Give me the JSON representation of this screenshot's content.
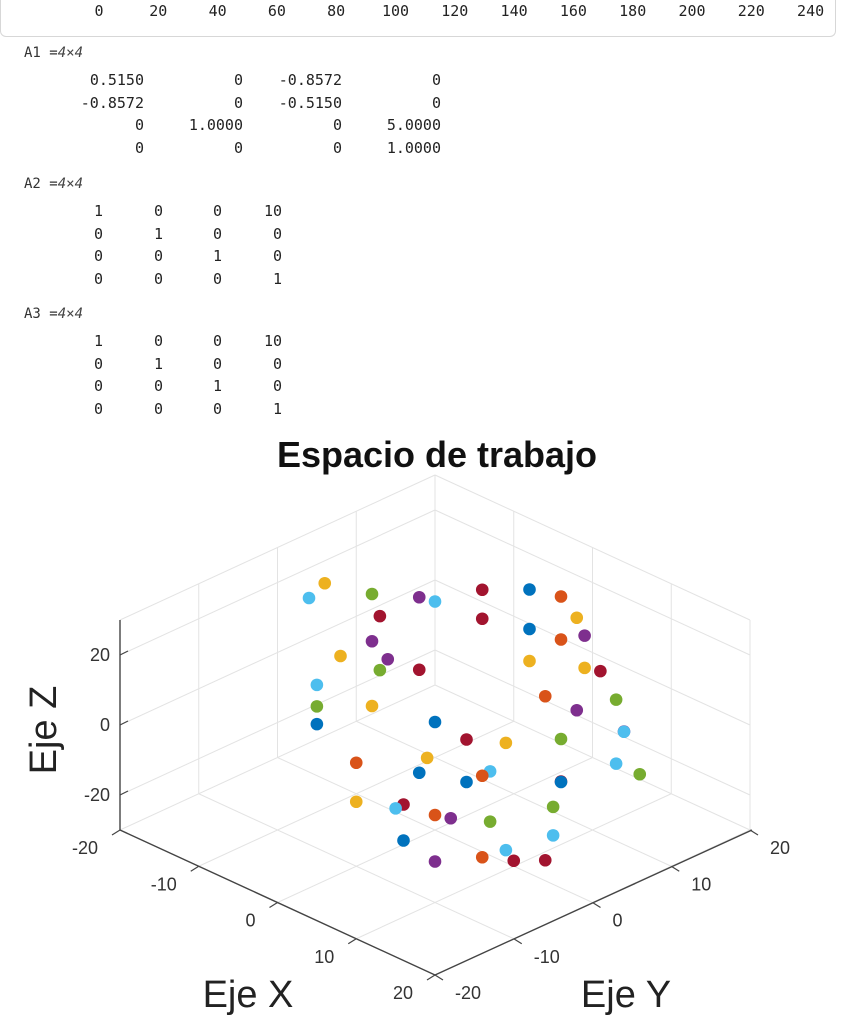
{
  "ruler": {
    "ticks": [
      "0",
      "20",
      "40",
      "60",
      "80",
      "100",
      "120",
      "140",
      "160",
      "180",
      "200",
      "220",
      "240"
    ]
  },
  "matrices": [
    {
      "name": "A1",
      "eq": " =",
      "dims": "4×4",
      "rows": [
        [
          "0.5150",
          "0",
          "-0.8572",
          "0"
        ],
        [
          "-0.8572",
          "0",
          "-0.5150",
          "0"
        ],
        [
          "0",
          "1.0000",
          "0",
          "5.0000"
        ],
        [
          "0",
          "0",
          "0",
          "1.0000"
        ]
      ]
    },
    {
      "name": "A2",
      "eq": " =",
      "dims": "4×4",
      "rows": [
        [
          "1",
          "0",
          "0",
          "10"
        ],
        [
          "0",
          "1",
          "0",
          "0"
        ],
        [
          "0",
          "0",
          "1",
          "0"
        ],
        [
          "0",
          "0",
          "0",
          "1"
        ]
      ]
    },
    {
      "name": "A3",
      "eq": " =",
      "dims": "4×4",
      "rows": [
        [
          "1",
          "0",
          "0",
          "10"
        ],
        [
          "0",
          "1",
          "0",
          "0"
        ],
        [
          "0",
          "0",
          "1",
          "0"
        ],
        [
          "0",
          "0",
          "0",
          "1"
        ]
      ]
    }
  ],
  "chart_data": {
    "type": "scatter",
    "title": "Espacio de trabajo",
    "xlabel": "Eje X",
    "ylabel": "Eje Y",
    "zlabel": "Eje Z",
    "xlim": [
      -20,
      20
    ],
    "ylim": [
      -20,
      20
    ],
    "zlim": [
      -30,
      30
    ],
    "xticks": [
      "-20",
      "-10",
      "0",
      "10",
      "20"
    ],
    "yticks": [
      "-20",
      "-10",
      "0",
      "10",
      "20"
    ],
    "zticks": [
      "-20",
      "0",
      "20"
    ],
    "grid": true,
    "colors": [
      "#0072BD",
      "#D95319",
      "#EDB120",
      "#7E2F8E",
      "#77AC30",
      "#4DBEEE",
      "#A2142F"
    ],
    "points": [
      {
        "x": 0,
        "y": -15,
        "z": 27,
        "c": 5
      },
      {
        "x": 2,
        "y": -17,
        "z": 25,
        "c": 4
      },
      {
        "x": 3,
        "y": -18,
        "z": 22,
        "c": 0
      },
      {
        "x": 4,
        "y": -12,
        "z": 22,
        "c": 2
      },
      {
        "x": 6,
        "y": -16,
        "z": 12,
        "c": 1
      },
      {
        "x": 8,
        "y": -10,
        "z": 5,
        "c": 0
      },
      {
        "x": 0,
        "y": -6,
        "z": 25,
        "c": 3
      },
      {
        "x": 2,
        "y": -4,
        "z": 22,
        "c": 6
      },
      {
        "x": -5,
        "y": -2,
        "z": 28,
        "c": 6
      },
      {
        "x": -3,
        "y": -5,
        "z": 26,
        "c": 3
      },
      {
        "x": -2,
        "y": -10,
        "z": 28,
        "c": 2
      },
      {
        "x": 1,
        "y": -8,
        "z": 25,
        "c": 4
      },
      {
        "x": -4,
        "y": 4,
        "z": 27,
        "c": 5
      },
      {
        "x": -2,
        "y": 8,
        "z": 20,
        "c": 6
      },
      {
        "x": 0,
        "y": 12,
        "z": 15,
        "c": 0
      },
      {
        "x": 2,
        "y": 14,
        "z": 12,
        "c": 1
      },
      {
        "x": 5,
        "y": 14,
        "z": 7,
        "c": 2
      },
      {
        "x": 4,
        "y": 10,
        "z": 2,
        "c": 1
      },
      {
        "x": 6,
        "y": 12,
        "z": -2,
        "c": 3
      },
      {
        "x": 10,
        "y": 14,
        "z": -6,
        "c": 3
      },
      {
        "x": 8,
        "y": 8,
        "z": -4,
        "c": 4
      },
      {
        "x": 12,
        "y": 11,
        "z": -10,
        "c": 5
      },
      {
        "x": 14,
        "y": 12,
        "z": -12,
        "c": 4
      },
      {
        "x": 10,
        "y": 6,
        "z": -12,
        "c": 6
      },
      {
        "x": 6,
        "y": 3,
        "z": -2,
        "c": 2
      },
      {
        "x": 7,
        "y": 0,
        "z": -6,
        "c": 5
      },
      {
        "x": 6,
        "y": -2,
        "z": -8,
        "c": 0
      },
      {
        "x": 12,
        "y": -5,
        "z": -10,
        "c": 4
      },
      {
        "x": 10,
        "y": -8,
        "z": -8,
        "c": 3
      },
      {
        "x": 14,
        "y": -8,
        "z": -15,
        "c": 1
      },
      {
        "x": 15,
        "y": -6,
        "z": -14,
        "c": 5
      },
      {
        "x": 16,
        "y": -6,
        "z": -16,
        "c": 6
      },
      {
        "x": 10,
        "y": -10,
        "z": -5,
        "c": 1
      },
      {
        "x": 8,
        "y": -12,
        "z": -2,
        "c": 6
      },
      {
        "x": 9,
        "y": -14,
        "z": 0,
        "c": 5
      },
      {
        "x": 12,
        "y": -16,
        "z": -4,
        "c": 0
      },
      {
        "x": 8,
        "y": -18,
        "z": 5,
        "c": 2
      },
      {
        "x": 2,
        "y": -2,
        "z": 5,
        "c": 0
      },
      {
        "x": 4,
        "y": 0,
        "z": 0,
        "c": 6
      },
      {
        "x": 14,
        "y": -14,
        "z": -10,
        "c": 3
      },
      {
        "x": 2,
        "y": 10,
        "z": 10,
        "c": 2
      },
      {
        "x": -10,
        "y": 2,
        "z": 25,
        "c": 4
      },
      {
        "x": -12,
        "y": -4,
        "z": 28,
        "c": 5
      },
      {
        "x": -14,
        "y": 0,
        "z": 26,
        "c": 2
      },
      {
        "x": -8,
        "y": 6,
        "z": 22,
        "c": 3
      },
      {
        "x": -6,
        "y": 12,
        "z": 20,
        "c": 6
      },
      {
        "x": -4,
        "y": 16,
        "z": 18,
        "c": 0
      },
      {
        "x": -2,
        "y": 18,
        "z": 16,
        "c": 1
      },
      {
        "x": 0,
        "y": 18,
        "z": 12,
        "c": 2
      },
      {
        "x": 2,
        "y": 17,
        "z": 10,
        "c": 3
      },
      {
        "x": 5,
        "y": 16,
        "z": 4,
        "c": 6
      },
      {
        "x": 8,
        "y": 15,
        "z": 0,
        "c": 4
      },
      {
        "x": 11,
        "y": 13,
        "z": -4,
        "c": 5
      },
      {
        "x": 10,
        "y": -4,
        "z": 0,
        "c": 1
      },
      {
        "x": 12,
        "y": 4,
        "z": -8,
        "c": 0
      },
      {
        "x": 5,
        "y": -6,
        "z": 2,
        "c": 2
      },
      {
        "x": 13,
        "y": 2,
        "z": -12,
        "c": 4
      },
      {
        "x": 16,
        "y": -2,
        "z": -20,
        "c": 6
      },
      {
        "x": 15,
        "y": 0,
        "z": -16,
        "c": 5
      }
    ]
  }
}
